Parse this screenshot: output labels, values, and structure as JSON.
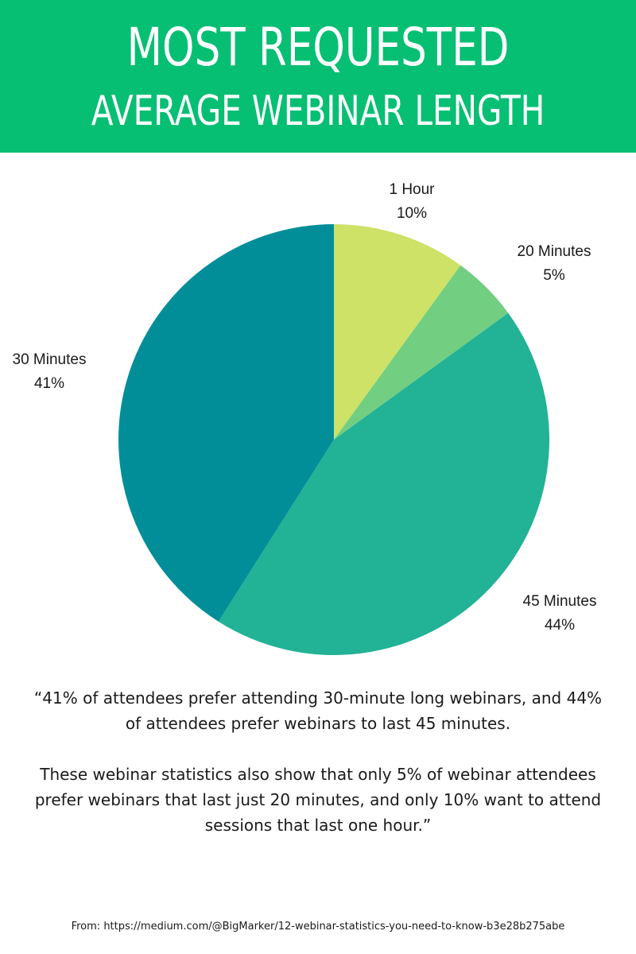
{
  "header": {
    "title_line1": "MOST REQUESTED",
    "title_line2": "AVERAGE WEBINAR LENGTH",
    "background_color": "#06bf73"
  },
  "chart_data": {
    "type": "pie",
    "title": "",
    "slices": [
      {
        "name": "1 Hour",
        "value": 10,
        "label": "10%",
        "color": "#cde267"
      },
      {
        "name": "20 Minutes",
        "value": 5,
        "label": "5%",
        "color": "#72ce80"
      },
      {
        "name": "45 Minutes",
        "value": 44,
        "label": "44%",
        "color": "#22b296"
      },
      {
        "name": "30 Minutes",
        "value": 41,
        "label": "41%",
        "color": "#028e99"
      }
    ]
  },
  "quote": {
    "paragraph1": "“41% of attendees prefer attending 30-minute long webinars, and 44% of attendees prefer webinars to last 45 minutes.",
    "paragraph2": "These webinar statistics also show that only 5% of webinar attendees prefer webinars that last just 20 minutes, and only 10% want to attend sessions that last one hour.”"
  },
  "source": "From: https://medium.com/@BigMarker/12-webinar-statistics-you-need-to-know-b3e28b275abe"
}
